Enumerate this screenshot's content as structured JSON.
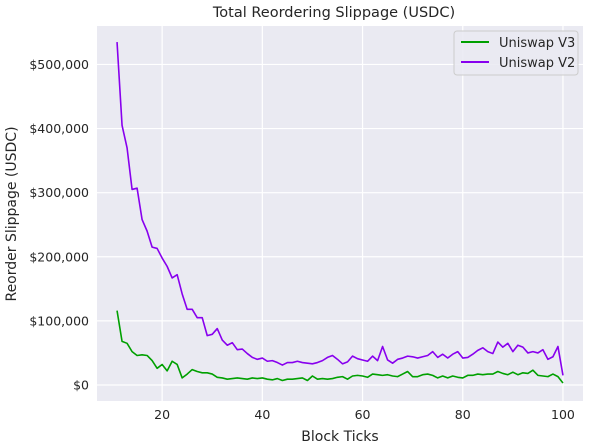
{
  "chart_data": {
    "type": "line",
    "title": "Total Reordering Slippage (USDC)",
    "xlabel": "Block Ticks",
    "ylabel": "Reorder Slippage (USDC)",
    "xlim": [
      7,
      104
    ],
    "ylim": [
      -25000,
      560000
    ],
    "xticks": [
      20,
      40,
      60,
      80,
      100
    ],
    "yticks": [
      0,
      100000,
      200000,
      300000,
      400000,
      500000
    ],
    "ytick_labels": [
      "$0",
      "$100,000",
      "$200,000",
      "$300,000",
      "$400,000",
      "$500,000"
    ],
    "grid": true,
    "legend_position": "top-right",
    "x": [
      11,
      12,
      13,
      14,
      15,
      16,
      17,
      18,
      19,
      20,
      21,
      22,
      23,
      24,
      25,
      26,
      27,
      28,
      29,
      30,
      31,
      32,
      33,
      34,
      35,
      36,
      37,
      38,
      39,
      40,
      41,
      42,
      43,
      44,
      45,
      46,
      47,
      48,
      49,
      50,
      51,
      52,
      53,
      54,
      55,
      56,
      57,
      58,
      59,
      60,
      61,
      62,
      63,
      64,
      65,
      66,
      67,
      68,
      69,
      70,
      71,
      72,
      73,
      74,
      75,
      76,
      77,
      78,
      79,
      80,
      81,
      82,
      83,
      84,
      85,
      86,
      87,
      88,
      89,
      90,
      91,
      92,
      93,
      94,
      95,
      96,
      97,
      98,
      99,
      100
    ],
    "series": [
      {
        "name": "Uniswap V3",
        "color": "#00a000",
        "values": [
          116000,
          68000,
          65000,
          52000,
          46000,
          47000,
          46000,
          38000,
          26000,
          32000,
          22000,
          37000,
          32000,
          11000,
          17000,
          24000,
          21000,
          19000,
          19000,
          17000,
          12000,
          11000,
          9000,
          10000,
          11000,
          10000,
          9000,
          11000,
          10000,
          11000,
          9000,
          8000,
          10000,
          7000,
          9000,
          9000,
          10000,
          11000,
          7000,
          14000,
          9000,
          10000,
          9000,
          10000,
          12000,
          13000,
          9000,
          14000,
          15000,
          14000,
          12000,
          17000,
          16000,
          15000,
          16000,
          14000,
          13000,
          17000,
          21000,
          13000,
          13000,
          16000,
          17000,
          15000,
          11000,
          14000,
          11000,
          14000,
          12000,
          11000,
          15000,
          15000,
          17000,
          16000,
          17000,
          17000,
          21000,
          18000,
          16000,
          20000,
          16000,
          19000,
          18000,
          23000,
          15000,
          14000,
          13000,
          17000,
          13000,
          3000
        ]
      },
      {
        "name": "Uniswap V2",
        "color": "#8800ee",
        "values": [
          535000,
          405000,
          370000,
          305000,
          307000,
          258000,
          240000,
          215000,
          213000,
          198000,
          185000,
          167000,
          172000,
          142000,
          118000,
          118000,
          105000,
          105000,
          77000,
          79000,
          88000,
          70000,
          62000,
          66000,
          55000,
          56000,
          49000,
          43000,
          40000,
          42000,
          37000,
          38000,
          35000,
          31000,
          35000,
          35000,
          37000,
          35000,
          34000,
          33000,
          35000,
          38000,
          43000,
          46000,
          40000,
          33000,
          36000,
          45000,
          41000,
          39000,
          37000,
          45000,
          38000,
          60000,
          39000,
          34000,
          40000,
          42000,
          45000,
          44000,
          42000,
          44000,
          46000,
          52000,
          43000,
          48000,
          42000,
          48000,
          52000,
          42000,
          43000,
          48000,
          54000,
          58000,
          52000,
          49000,
          67000,
          59000,
          65000,
          52000,
          62000,
          59000,
          50000,
          52000,
          50000,
          55000,
          40000,
          44000,
          60000,
          15000
        ]
      }
    ]
  }
}
